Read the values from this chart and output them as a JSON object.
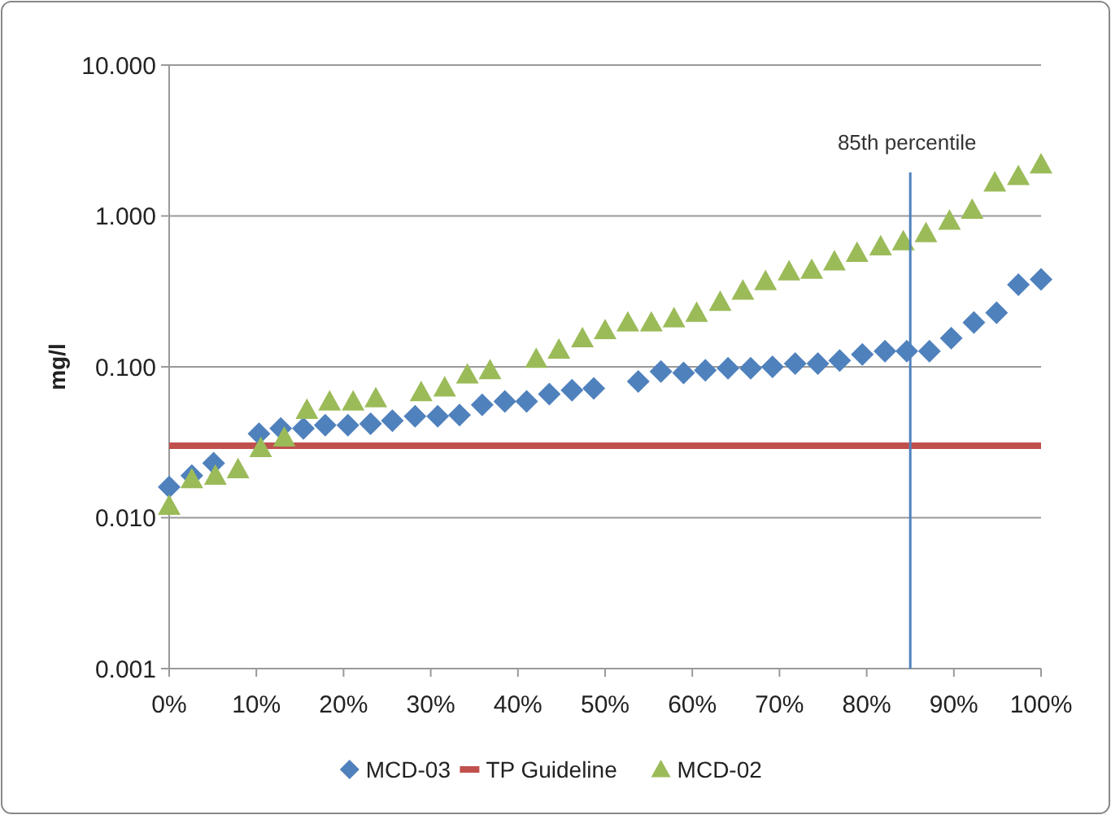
{
  "chart_data": {
    "type": "scatter",
    "ylabel": "mg/l",
    "log": "y",
    "grid": "y",
    "legend": "bottom",
    "xlim": [
      0,
      100
    ],
    "xticks": [
      {
        "value": 0,
        "label": "0%"
      },
      {
        "value": 10,
        "label": "10%"
      },
      {
        "value": 20,
        "label": "20%"
      },
      {
        "value": 30,
        "label": "30%"
      },
      {
        "value": 40,
        "label": "40%"
      },
      {
        "value": 50,
        "label": "50%"
      },
      {
        "value": 60,
        "label": "60%"
      },
      {
        "value": 70,
        "label": "70%"
      },
      {
        "value": 80,
        "label": "80%"
      },
      {
        "value": 90,
        "label": "90%"
      },
      {
        "value": 100,
        "label": "100%"
      }
    ],
    "ylim": [
      0.001,
      10
    ],
    "yticks": [
      {
        "value": 0.001,
        "label": "0.001"
      },
      {
        "value": 0.01,
        "label": "0.010"
      },
      {
        "value": 0.1,
        "label": "0.100"
      },
      {
        "value": 1,
        "label": "1.000"
      },
      {
        "value": 10,
        "label": "10.000"
      }
    ],
    "series": [
      {
        "name": "MCD-03",
        "color": "#4f81bd",
        "marker": "diamond",
        "x": [
          0,
          2.6,
          5.1,
          10.3,
          12.8,
          15.4,
          17.9,
          20.5,
          23.1,
          25.6,
          28.2,
          30.8,
          33.3,
          35.9,
          38.5,
          41,
          43.6,
          46.2,
          48.7,
          53.8,
          56.4,
          59,
          61.5,
          64.1,
          66.7,
          69.2,
          71.8,
          74.4,
          76.9,
          79.5,
          82.1,
          84.6,
          87.2,
          89.7,
          92.3,
          94.9,
          97.4,
          100
        ],
        "values": [
          0.016,
          0.019,
          0.023,
          0.036,
          0.039,
          0.039,
          0.041,
          0.041,
          0.042,
          0.044,
          0.047,
          0.047,
          0.048,
          0.056,
          0.059,
          0.059,
          0.066,
          0.07,
          0.072,
          0.08,
          0.093,
          0.091,
          0.095,
          0.098,
          0.098,
          0.1,
          0.105,
          0.105,
          0.11,
          0.121,
          0.127,
          0.127,
          0.127,
          0.155,
          0.197,
          0.228,
          0.35,
          0.38
        ]
      },
      {
        "name": "MCD-02",
        "color": "#9bbb59",
        "marker": "triangle",
        "x": [
          0,
          2.6,
          5.3,
          7.9,
          10.5,
          13.2,
          15.8,
          18.4,
          21.1,
          23.7,
          28.9,
          31.6,
          34.2,
          36.8,
          42.1,
          44.7,
          47.4,
          50,
          52.6,
          55.3,
          57.9,
          60.5,
          63.2,
          65.8,
          68.4,
          71.1,
          73.7,
          76.3,
          78.9,
          81.6,
          84.2,
          86.8,
          89.5,
          92.1,
          94.7,
          97.4,
          100
        ],
        "values": [
          0.012,
          0.018,
          0.019,
          0.021,
          0.029,
          0.034,
          0.052,
          0.059,
          0.059,
          0.062,
          0.068,
          0.073,
          0.089,
          0.095,
          0.113,
          0.13,
          0.155,
          0.175,
          0.197,
          0.197,
          0.21,
          0.228,
          0.27,
          0.32,
          0.37,
          0.43,
          0.44,
          0.5,
          0.57,
          0.63,
          0.68,
          0.77,
          0.93,
          1.1,
          1.67,
          1.84,
          2.2
        ]
      }
    ],
    "ref_lines": [
      {
        "axis": "y",
        "value": 0.03,
        "label": "TP Guideline",
        "color": "#c0504d"
      },
      {
        "axis": "x",
        "value": 85,
        "label": "85th percentile",
        "color": "#4f81bd"
      }
    ]
  }
}
